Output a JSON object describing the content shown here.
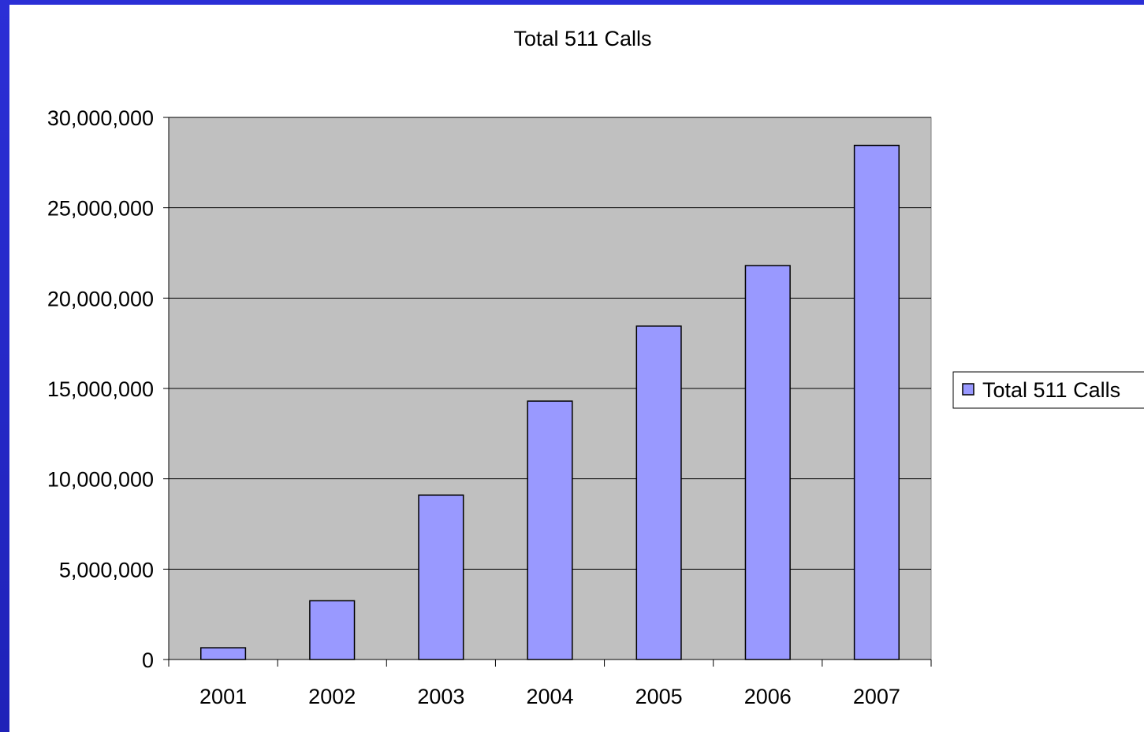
{
  "chart_data": {
    "type": "bar",
    "title": "Total 511 Calls",
    "categories": [
      "2001",
      "2002",
      "2003",
      "2004",
      "2005",
      "2006",
      "2007"
    ],
    "series": [
      {
        "name": "Total 511 Calls",
        "values": [
          650000,
          3250000,
          9100000,
          14300000,
          18450000,
          21800000,
          28450000
        ]
      }
    ],
    "ylim": [
      0,
      30000000
    ],
    "yticks": [
      0,
      5000000,
      10000000,
      15000000,
      20000000,
      25000000,
      30000000
    ],
    "ytick_labels": [
      "0",
      "5,000,000",
      "10,000,000",
      "15,000,000",
      "20,000,000",
      "25,000,000",
      "30,000,000"
    ],
    "grid": true,
    "legend_position": "right",
    "colors": {
      "bar_fill": "#9999ff",
      "plot_background": "#c0c0c0",
      "frame": "#2329c8"
    }
  }
}
